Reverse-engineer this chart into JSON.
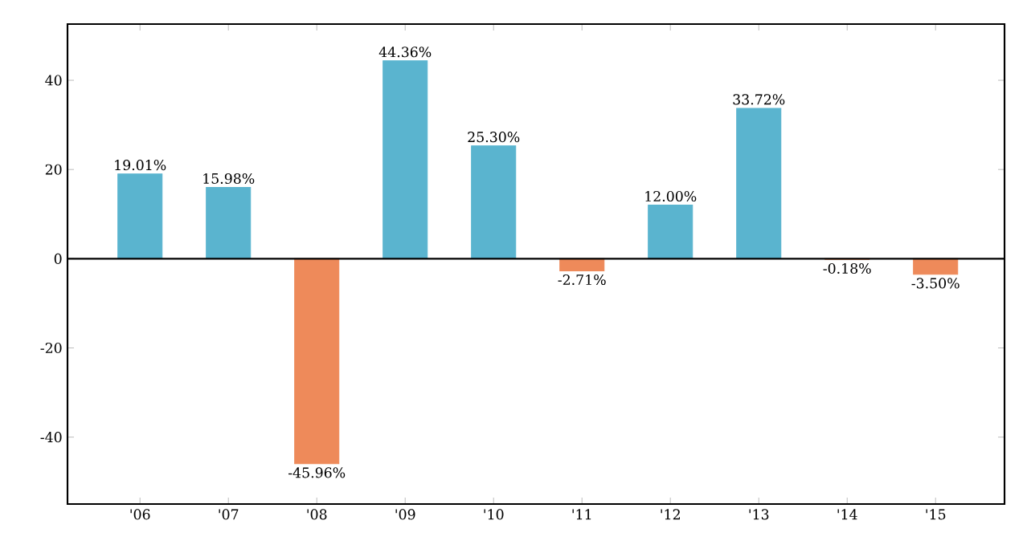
{
  "chart_data": {
    "type": "bar",
    "categories": [
      "'06",
      "'07",
      "'08",
      "'09",
      "'10",
      "'11",
      "'12",
      "'13",
      "'14",
      "'15"
    ],
    "values": [
      19.01,
      15.98,
      -45.96,
      44.36,
      25.3,
      -2.71,
      12.0,
      33.72,
      -0.18,
      -3.5
    ],
    "colors": [
      "#5ab4cf",
      "#5ab4cf",
      "#ee8a5a",
      "#5ab4cf",
      "#5ab4cf",
      "#ee8a5a",
      "#5ab4cf",
      "#5ab4cf",
      "#ee8a5a",
      "#ee8a5a"
    ],
    "value_labels": [
      "19.01%",
      "15.98%",
      "-45.96%",
      "44.36%",
      "25.30%",
      "-2.71%",
      "12.00%",
      "33.72%",
      "-0.18%",
      "-3.50%"
    ],
    "ylim": [
      -55,
      52.6
    ],
    "yticks": [
      -40,
      -20,
      0,
      20,
      40
    ],
    "ref_lines": [
      {
        "axis": "y",
        "value": 0,
        "color": "#000000"
      }
    ],
    "grid": false
  }
}
